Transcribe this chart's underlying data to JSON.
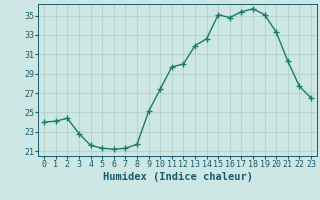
{
  "x": [
    0,
    1,
    2,
    3,
    4,
    5,
    6,
    7,
    8,
    9,
    10,
    11,
    12,
    13,
    14,
    15,
    16,
    17,
    18,
    19,
    20,
    21,
    22,
    23
  ],
  "y": [
    24.0,
    24.1,
    24.4,
    22.8,
    21.6,
    21.3,
    21.2,
    21.3,
    21.7,
    25.1,
    27.4,
    29.7,
    30.0,
    31.9,
    32.6,
    35.1,
    34.8,
    35.4,
    35.7,
    35.1,
    33.3,
    30.3,
    27.7,
    26.5
  ],
  "line_color": "#1a7a6e",
  "bg_color": "#cde8e4",
  "grid_color": "#b8d4cf",
  "xlabel": "Humidex (Indice chaleur)",
  "ylim": [
    20.5,
    36.2
  ],
  "xlim": [
    -0.5,
    23.5
  ],
  "yticks": [
    21,
    23,
    25,
    27,
    29,
    31,
    33,
    35
  ],
  "xticks": [
    0,
    1,
    2,
    3,
    4,
    5,
    6,
    7,
    8,
    9,
    10,
    11,
    12,
    13,
    14,
    15,
    16,
    17,
    18,
    19,
    20,
    21,
    22,
    23
  ],
  "marker": "+",
  "linewidth": 1.0,
  "markersize": 4,
  "markeredgewidth": 1.0,
  "font_color": "#1a5a6e",
  "tick_fontsize": 6,
  "label_fontsize": 7.5
}
